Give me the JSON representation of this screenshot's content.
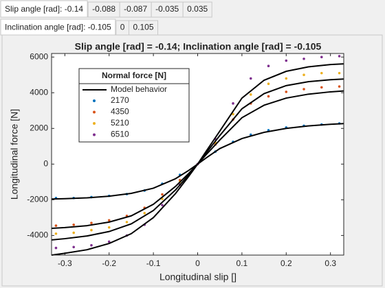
{
  "tabs": {
    "slip_angle": [
      "Slip angle [rad]: -0.14",
      "-0.088",
      "-0.087",
      "-0.035",
      "0.035"
    ],
    "inclination_angle": [
      "Inclination angle [rad]: -0.105",
      "0",
      "0.105"
    ]
  },
  "chart_data": {
    "type": "scatter",
    "title": "Slip angle [rad] = -0.14; Inclination angle [rad] = -0.105",
    "xlabel": "Longitudinal slip []",
    "ylabel": "Longitudinal force [N]",
    "xlim": [
      -0.33,
      0.33
    ],
    "ylim": [
      -5100,
      6200
    ],
    "xticks": [
      -0.3,
      -0.2,
      -0.1,
      0,
      0.1,
      0.2,
      0.3
    ],
    "yticks": [
      -4000,
      -2000,
      0,
      2000,
      4000,
      6000
    ],
    "legend_title": "Normal force [N]",
    "model": {
      "name": "Model behavior",
      "color": "#000000",
      "x": [
        -0.33,
        -0.3,
        -0.25,
        -0.2,
        -0.15,
        -0.1,
        -0.05,
        -0.02,
        0,
        0.02,
        0.05,
        0.1,
        0.15,
        0.2,
        0.25,
        0.3,
        0.33
      ],
      "curves": [
        [
          -1960,
          -1940,
          -1890,
          -1800,
          -1640,
          -1350,
          -820,
          -350,
          0,
          360,
          870,
          1430,
          1780,
          2000,
          2140,
          2230,
          2270
        ],
        [
          -3600,
          -3560,
          -3450,
          -3250,
          -2900,
          -2250,
          -1250,
          -520,
          0,
          550,
          1350,
          2600,
          3300,
          3700,
          3920,
          4050,
          4100
        ],
        [
          -4250,
          -4180,
          -4030,
          -3780,
          -3350,
          -2600,
          -1450,
          -600,
          0,
          650,
          1600,
          3100,
          3950,
          4400,
          4620,
          4730,
          4770
        ],
        [
          -5100,
          -5000,
          -4800,
          -4450,
          -3900,
          -3000,
          -1650,
          -680,
          0,
          750,
          1850,
          3700,
          4700,
          5200,
          5450,
          5580,
          5620
        ]
      ]
    },
    "x": [
      -0.32,
      -0.28,
      -0.24,
      -0.2,
      -0.16,
      -0.12,
      -0.08,
      -0.04,
      0,
      0.04,
      0.08,
      0.12,
      0.16,
      0.2,
      0.24,
      0.28,
      0.32
    ],
    "series": [
      {
        "name": "2170",
        "color": "#0072bd",
        "values": [
          -1900,
          -1900,
          -1850,
          -1780,
          -1680,
          -1480,
          -1100,
          -600,
          0,
          700,
          1250,
          1650,
          1900,
          2050,
          2150,
          2220,
          2280
        ]
      },
      {
        "name": "4350",
        "color": "#d95319",
        "values": [
          -3450,
          -3400,
          -3300,
          -3150,
          -2900,
          -2450,
          -1700,
          -900,
          0,
          1100,
          2500,
          3400,
          3800,
          4050,
          4200,
          4300,
          4350
        ]
      },
      {
        "name": "5210",
        "color": "#edb120",
        "values": [
          -3900,
          -3850,
          -3700,
          -3550,
          -3250,
          -2750,
          -1950,
          -1000,
          0,
          1200,
          2800,
          3900,
          4500,
          4800,
          5000,
          5100,
          5100
        ]
      },
      {
        "name": "6510",
        "color": "#7e2f8e",
        "values": [
          -4700,
          -4650,
          -4550,
          -4350,
          -4000,
          -3400,
          -2300,
          -1150,
          0,
          1400,
          3400,
          4800,
          5500,
          5800,
          5900,
          6000,
          6050
        ]
      }
    ]
  }
}
